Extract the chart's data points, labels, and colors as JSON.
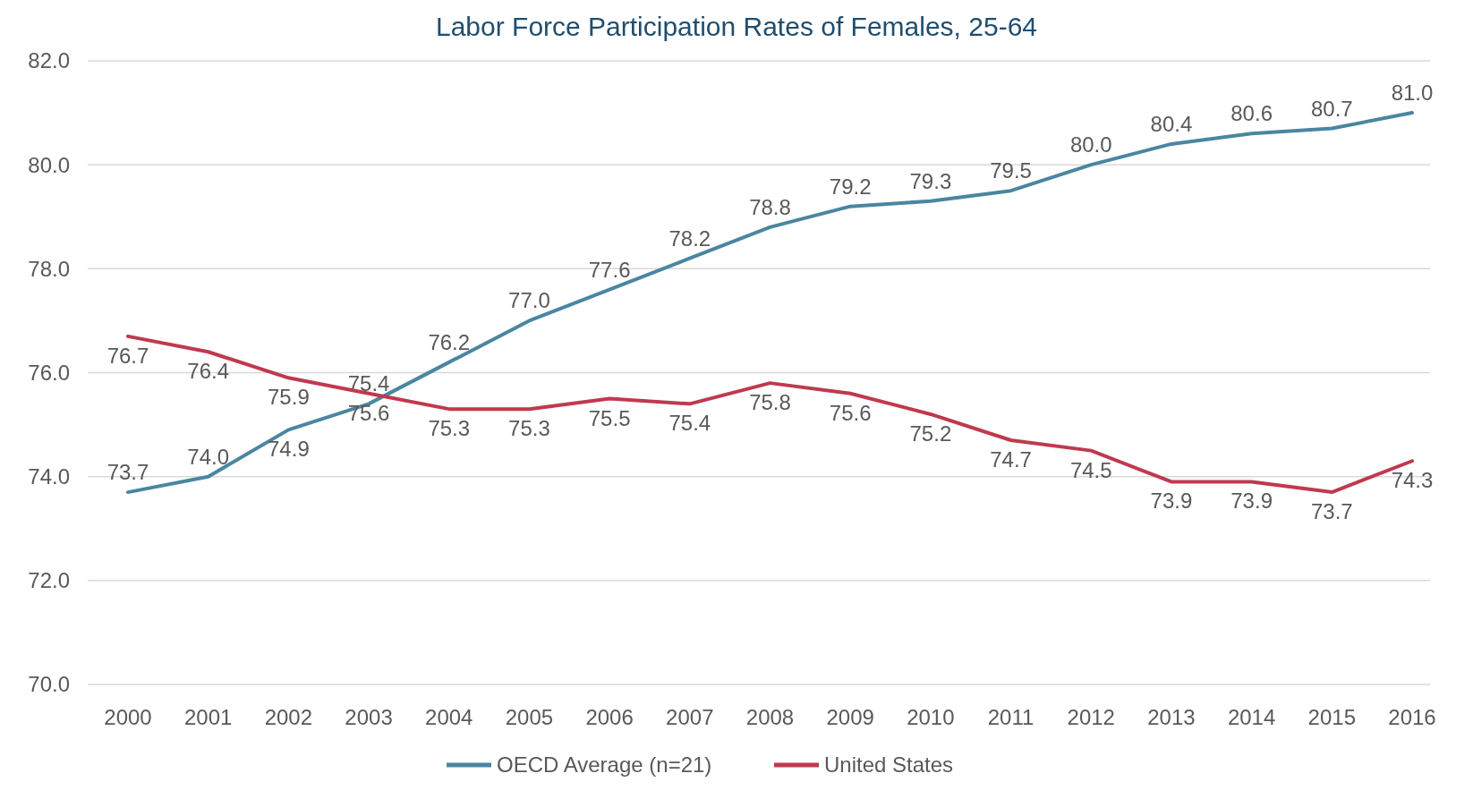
{
  "chart_data": {
    "type": "line",
    "title": "Labor Force Participation Rates of Females, 25-64",
    "categories": [
      "2000",
      "2001",
      "2002",
      "2003",
      "2004",
      "2005",
      "2006",
      "2007",
      "2008",
      "2009",
      "2010",
      "2011",
      "2012",
      "2013",
      "2014",
      "2015",
      "2016"
    ],
    "series": [
      {
        "name": "OECD Average (n=21)",
        "color": "#4a86a0",
        "values": [
          73.7,
          74.0,
          74.9,
          75.4,
          76.2,
          77.0,
          77.6,
          78.2,
          78.8,
          79.2,
          79.3,
          79.5,
          80.0,
          80.4,
          80.6,
          80.7,
          81.0
        ],
        "value_labels": [
          "73.7",
          "74.0",
          "74.9",
          "75.4",
          "76.2",
          "77.0",
          "77.6",
          "78.2",
          "78.8",
          "79.2",
          "79.3",
          "79.5",
          "80.0",
          "80.4",
          "80.6",
          "80.7",
          "81.0"
        ]
      },
      {
        "name": "United States",
        "color": "#c0394f",
        "values": [
          76.7,
          76.4,
          75.9,
          75.6,
          75.3,
          75.3,
          75.5,
          75.4,
          75.8,
          75.6,
          75.2,
          74.7,
          74.5,
          73.9,
          73.9,
          73.7,
          74.3
        ],
        "value_labels": [
          "76.7",
          "76.4",
          "75.9",
          "75.6",
          "75.3",
          "75.3",
          "75.5",
          "75.4",
          "75.8",
          "75.6",
          "75.2",
          "74.7",
          "74.5",
          "73.9",
          "73.9",
          "73.7",
          "74.3"
        ]
      }
    ],
    "ylim": [
      70,
      82
    ],
    "yticks": [
      {
        "value": 70,
        "label": "70.0"
      },
      {
        "value": 72,
        "label": "72.0"
      },
      {
        "value": 74,
        "label": "74.0"
      },
      {
        "value": 76,
        "label": "76.0"
      },
      {
        "value": 78,
        "label": "78.0"
      },
      {
        "value": 80,
        "label": "80.0"
      },
      {
        "value": 82,
        "label": "82.0"
      }
    ],
    "grid": "y",
    "legend": "bottom",
    "marker": "none",
    "line_style": "solid"
  }
}
